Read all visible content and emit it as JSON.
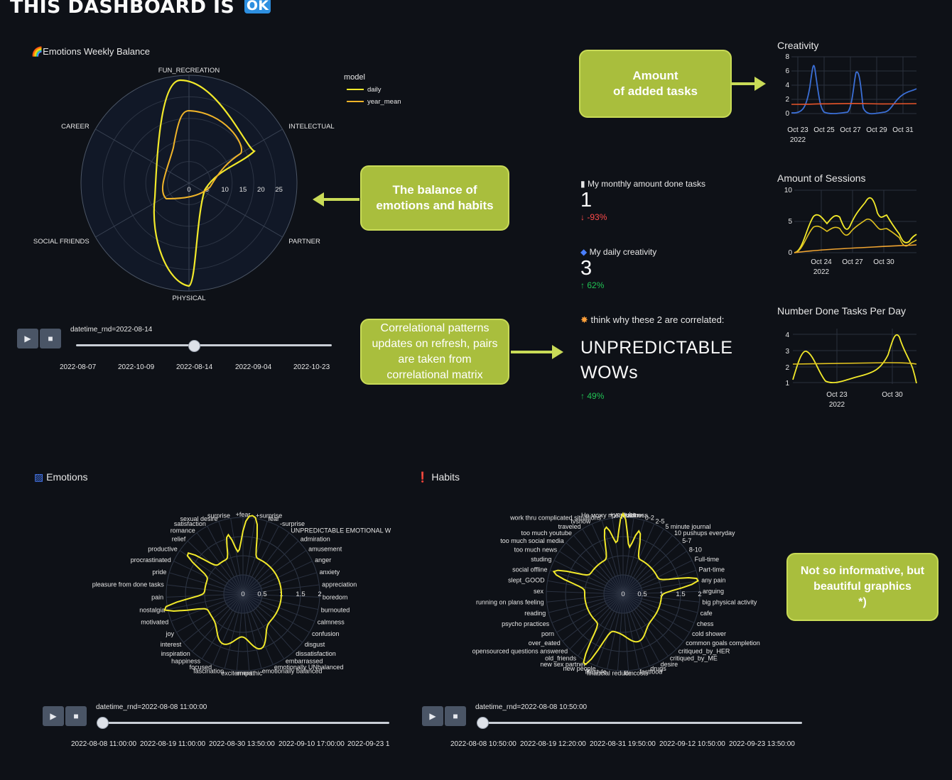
{
  "header": {
    "title": "THIS DASHBOARD IS",
    "badge": "OK"
  },
  "radar_main": {
    "title": "🌈Emotions Weekly Balance",
    "axes": [
      "FUN_RECREATION",
      "INTELECTUAL",
      "PARTNER",
      "PHYSICAL",
      "SOCIAL FRIENDS",
      "CAREER"
    ],
    "radial_ticks": [
      "0",
      "5",
      "10",
      "15",
      "20",
      "25"
    ],
    "legend_title": "model",
    "series": [
      {
        "name": "daily",
        "color": "#f2e92a"
      },
      {
        "name": "year_mean",
        "color": "#f0b429"
      }
    ],
    "slider_label": "datetime_rnd=2022-08-14",
    "slider_ticks": [
      "2022-08-07",
      "2022-10-09",
      "2022-08-14",
      "2022-09-04",
      "2022-10-23"
    ],
    "slider_position": 0.4
  },
  "callouts": {
    "amount": "Amount\nof added tasks",
    "balance": "The balance of emotions and habits",
    "correlation": "Correlational patterns updates on refresh, pairs are taken from correlational matrix",
    "informative": "Not so informative, but beautiful graphics\n*)"
  },
  "metrics": [
    {
      "label": "My monthly amount done tasks",
      "value": "1",
      "delta": "-93%",
      "direction": "down",
      "icon": "calendar-icon"
    },
    {
      "label": "My daily creativity",
      "value": "3",
      "delta": "62%",
      "direction": "up",
      "icon": "palette-icon"
    },
    {
      "label": "think why these 2 are correlated:",
      "value": "UNPREDICTABLE WOWs",
      "delta": "49%",
      "direction": "up",
      "icon": "sparkle-icon"
    }
  ],
  "mini_charts": [
    {
      "title": "Creativity",
      "yticks": [
        "8",
        "6",
        "4",
        "2",
        "0"
      ],
      "xticks": [
        "Oct 23",
        "Oct 25",
        "Oct 27",
        "Oct 29",
        "Oct 31"
      ],
      "year": "2022"
    },
    {
      "title": "Amount of Sessions",
      "yticks": [
        "10",
        "5",
        "0"
      ],
      "xticks": [
        "Oct 24",
        "Oct 27",
        "Oct 30"
      ],
      "year": "2022"
    },
    {
      "title": "Number Done Tasks Per Day",
      "yticks": [
        "4",
        "3",
        "2",
        "1"
      ],
      "xticks": [
        "Oct 23",
        "Oct 30"
      ],
      "year": "2022"
    }
  ],
  "emotions": {
    "title": "Emotions",
    "labels": [
      "+fear",
      "+surprise",
      "fear",
      "-surprise",
      "UNPREDICTABLE EMOTIONAL W",
      "admiration",
      "amusement",
      "anger",
      "anxiety",
      "appreciation",
      "boredom",
      "burnouted",
      "calmness",
      "confusion",
      "disgust",
      "dissatisfaction",
      "embarrassed",
      "emotionally UNbalanced",
      "emotionally balanced",
      "empathic",
      "excitement",
      "fascination",
      "focused",
      "happiness",
      "inspiration",
      "interest",
      "joy",
      "motivated",
      "nostalgia",
      "pain",
      "pleasure from done tasks",
      "pride",
      "procrastinated",
      "productive",
      "relief",
      "romance",
      "satisfaction",
      "sexual desire",
      "surprise"
    ],
    "radial_ticks": [
      "0",
      "0.5",
      "1",
      "1.5",
      "2"
    ],
    "slider_label": "datetime_rnd=2022-08-08 11:00:00",
    "slider_ticks": [
      "2022-08-08 11:00:00",
      "2022-08-19 11:00:00",
      "2022-08-30 13:50:00",
      "2022-09-10 17:00:00",
      "2022-09-23 1"
    ]
  },
  "habits": {
    "title": "Habits",
    "labels": [
      "+youtube",
      "+sadness",
      "0-2",
      "2-5",
      "5 minute journal",
      "10 pushups everyday",
      "5-7",
      "8-10",
      "Full-time",
      "Part-time",
      "any pain",
      "arguing",
      "big physical activity",
      "cafe",
      "chess",
      "cold shower",
      "common goals completion",
      "critiqued_by_HER",
      "critiqued_by_ME",
      "desire",
      "drugs",
      "fastfood",
      "film",
      "financial reduce costs",
      "lifestyle",
      "new people",
      "new sex partner",
      "old_friends",
      "opensourced questions answered",
      "over_eated",
      "porn",
      "psycho practices",
      "reading",
      "running on plans feeling",
      "sex",
      "slept_GOOD",
      "social offline",
      "studing",
      "too much news",
      "too much social media",
      "too much youtube",
      "traveled",
      "tvshow",
      "work thru complicated situations",
      "Не можу прециовати"
    ],
    "radial_ticks": [
      "0",
      "0.5",
      "1",
      "1.5",
      "2"
    ],
    "slider_label": "datetime_rnd=2022-08-08 10:50:00",
    "slider_ticks": [
      "2022-08-08 10:50:00",
      "2022-08-19 12:20:00",
      "2022-08-31 19:50:00",
      "2022-09-12 10:50:00",
      "2022-09-23 13:50:00"
    ]
  },
  "controls": {
    "play": "▶",
    "stop": "■"
  }
}
